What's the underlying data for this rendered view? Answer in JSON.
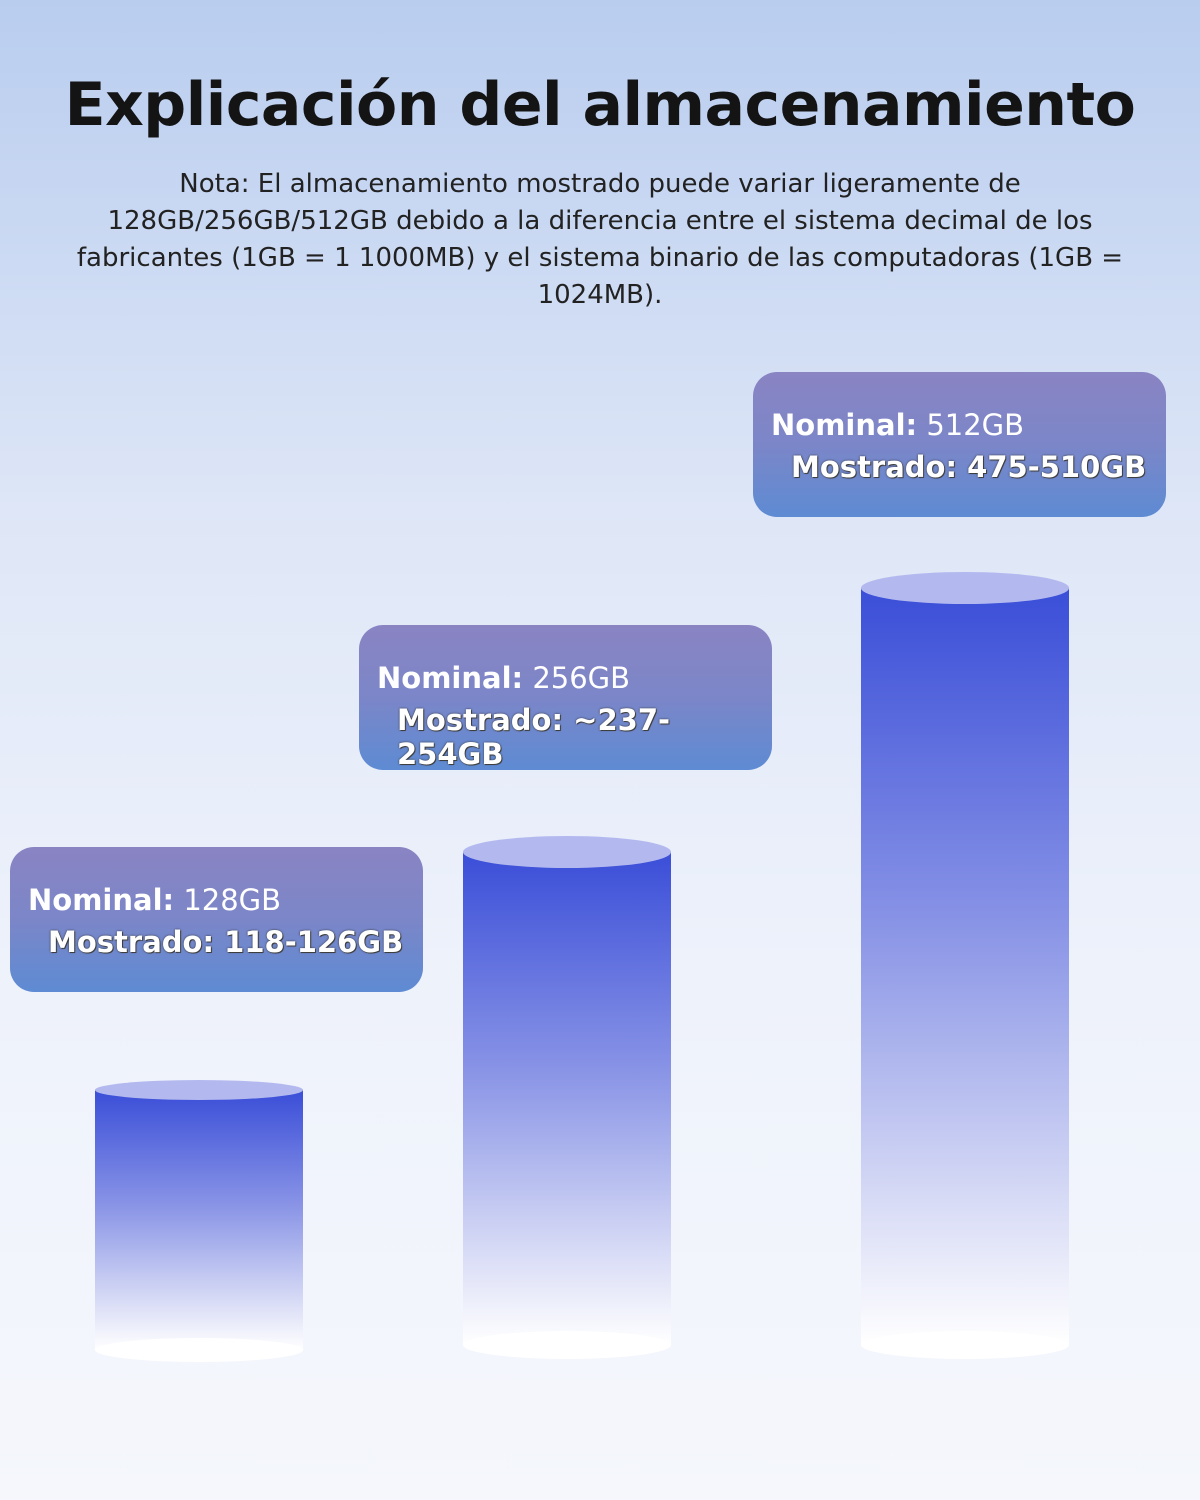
{
  "header": {
    "title": "Explicación del almacenamiento",
    "note": "Nota: El almacenamiento mostrado puede variar ligeramente de 128GB/256GB/512GB debido a la diferencia entre el sistema decimal de los fabricantes (1GB = 1 1000MB) y el sistema binario de las computadoras (1GB = 1024MB)."
  },
  "items": [
    {
      "nominal_label": "Nominal:",
      "nominal": "128GB",
      "shown_label": "Mostrado:",
      "shown": "118-126GB"
    },
    {
      "nominal_label": "Nominal:",
      "nominal": "256GB",
      "shown_label": "Mostrado:",
      "shown": "~237-254GB"
    },
    {
      "nominal_label": "Nominal:",
      "nominal": "512GB",
      "shown_label": "Mostrado:",
      "shown": "475-510GB"
    }
  ]
}
